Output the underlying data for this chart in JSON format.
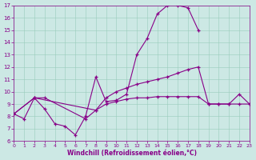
{
  "xlabel": "Windchill (Refroidissement éolien,°C)",
  "background_color": "#cce8e4",
  "line_color": "#880088",
  "xlim": [
    0,
    23
  ],
  "ylim": [
    6,
    17
  ],
  "yticks": [
    6,
    7,
    8,
    9,
    10,
    11,
    12,
    13,
    14,
    15,
    16,
    17
  ],
  "xticks": [
    0,
    1,
    2,
    3,
    4,
    5,
    6,
    7,
    8,
    9,
    10,
    11,
    12,
    13,
    14,
    15,
    16,
    17,
    18,
    19,
    20,
    21,
    22,
    23
  ],
  "line1_x": [
    0,
    1,
    2,
    3,
    4,
    5,
    6,
    7,
    8,
    9,
    10,
    11,
    12,
    13,
    14,
    15,
    16,
    17,
    18
  ],
  "line1_y": [
    8.2,
    7.8,
    9.5,
    8.6,
    7.4,
    7.2,
    6.5,
    8.0,
    11.2,
    9.2,
    9.3,
    9.8,
    13.0,
    14.3,
    16.3,
    17.0,
    17.0,
    16.8,
    15.0
  ],
  "line2_x": [
    0,
    2,
    3,
    7,
    8,
    9,
    10,
    11,
    12,
    13,
    14,
    15,
    16,
    17,
    18,
    19,
    20,
    21,
    22,
    23
  ],
  "line2_y": [
    8.2,
    9.5,
    9.5,
    7.8,
    8.5,
    9.5,
    10.0,
    10.3,
    10.6,
    10.8,
    11.0,
    11.2,
    11.5,
    11.8,
    12.0,
    9.0,
    9.0,
    9.0,
    9.8,
    9.0
  ],
  "line3_x": [
    0,
    2,
    8,
    9,
    10,
    11,
    12,
    13,
    14,
    15,
    16,
    17,
    18,
    19,
    20,
    21,
    22,
    23
  ],
  "line3_y": [
    8.2,
    9.5,
    8.5,
    9.0,
    9.2,
    9.4,
    9.5,
    9.5,
    9.6,
    9.6,
    9.6,
    9.6,
    9.6,
    9.0,
    9.0,
    9.0,
    9.0,
    9.0
  ]
}
